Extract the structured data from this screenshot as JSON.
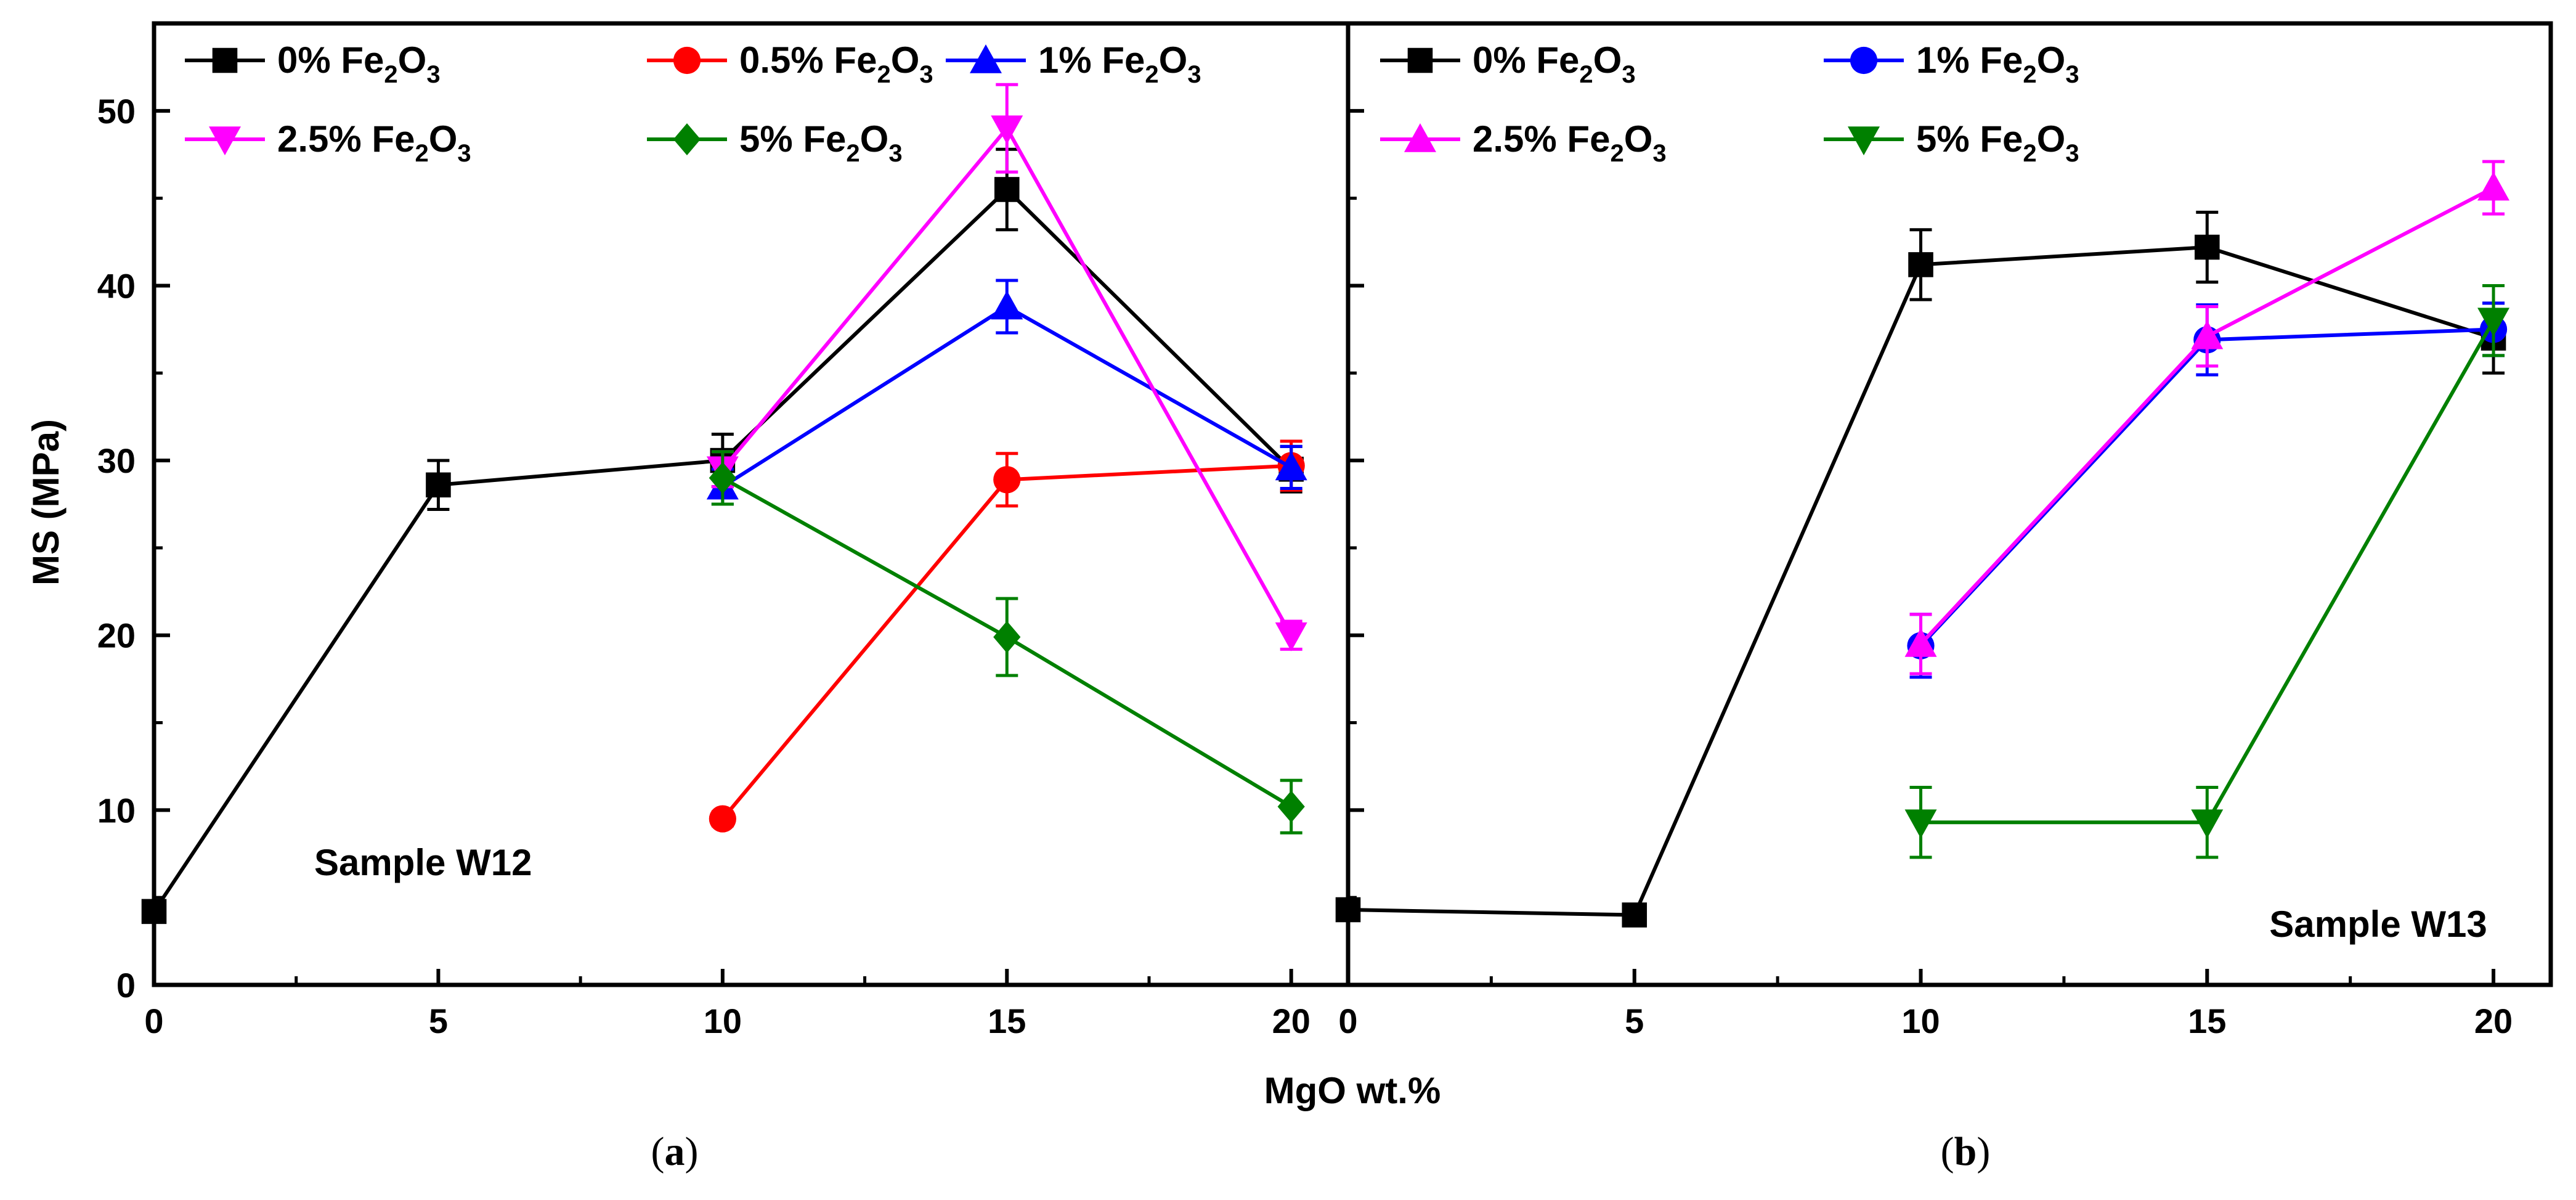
{
  "chart_data": [
    {
      "type": "line",
      "panel_label": "(a)",
      "panel_letter": "a",
      "annotation": "Sample W12",
      "xlabel": "MgO wt.%",
      "ylabel": "MS (MPa)",
      "xlim": [
        0,
        21
      ],
      "ylim": [
        0,
        55
      ],
      "xticks": [
        0,
        5,
        10,
        15,
        20
      ],
      "yticks": [
        0,
        10,
        20,
        30,
        40,
        50
      ],
      "legend_position": "top-left",
      "series": [
        {
          "name": "0% Fe2O3",
          "prefix": "0% Fe",
          "sub1": "2",
          "mid": "O",
          "sub2": "3",
          "color": "#000000",
          "marker": "square",
          "x": [
            0,
            5,
            10,
            15,
            20
          ],
          "y": [
            4.2,
            28.6,
            30.0,
            45.5,
            29.5
          ],
          "err": [
            0.5,
            1.4,
            1.5,
            2.3,
            1.3
          ]
        },
        {
          "name": "0.5% Fe2O3",
          "prefix": "0.5% Fe",
          "sub1": "2",
          "mid": "O",
          "sub2": "3",
          "color": "#ff0000",
          "marker": "circle",
          "x": [
            10,
            15,
            20
          ],
          "y": [
            9.5,
            28.9,
            29.7
          ],
          "err": [
            0.4,
            1.5,
            1.4
          ]
        },
        {
          "name": "1% Fe2O3",
          "prefix": "1% Fe",
          "sub1": "2",
          "mid": "O",
          "sub2": "3",
          "color": "#0000ff",
          "marker": "triangle-up",
          "x": [
            10,
            15,
            20
          ],
          "y": [
            28.5,
            38.8,
            29.6
          ],
          "err": [
            1.0,
            1.5,
            1.2
          ]
        },
        {
          "name": "2.5% Fe2O3",
          "prefix": "2.5% Fe",
          "sub1": "2",
          "mid": "O",
          "sub2": "3",
          "color": "#ff00ff",
          "marker": "triangle-down",
          "x": [
            10,
            15,
            20
          ],
          "y": [
            29.5,
            49.0,
            20.0
          ],
          "err": [
            1.0,
            2.5,
            0.8
          ]
        },
        {
          "name": "5% Fe2O3",
          "prefix": "5% Fe",
          "sub1": "2",
          "mid": "O",
          "sub2": "3",
          "color": "#008000",
          "marker": "diamond",
          "x": [
            10,
            15,
            20
          ],
          "y": [
            29.0,
            19.9,
            10.2
          ],
          "err": [
            1.5,
            2.2,
            1.5
          ]
        }
      ]
    },
    {
      "type": "line",
      "panel_label": "(b)",
      "panel_letter": "b",
      "annotation": "Sample W13",
      "xlabel": "MgO wt.%",
      "ylabel": "MS (MPa)",
      "xlim": [
        0,
        21
      ],
      "ylim": [
        0,
        55
      ],
      "xticks": [
        0,
        5,
        10,
        15,
        20
      ],
      "yticks": [
        0,
        10,
        20,
        30,
        40,
        50
      ],
      "legend_position": "top-left",
      "series": [
        {
          "name": "0% Fe2O3",
          "prefix": "0% Fe",
          "sub1": "2",
          "mid": "O",
          "sub2": "3",
          "color": "#000000",
          "marker": "square",
          "x": [
            0,
            5,
            10,
            15,
            20
          ],
          "y": [
            4.3,
            4.0,
            41.2,
            42.2,
            37.0
          ],
          "err": [
            0.5,
            0.3,
            2.0,
            2.0,
            2.0
          ]
        },
        {
          "name": "1% Fe2O3",
          "prefix": "1% Fe",
          "sub1": "2",
          "mid": "O",
          "sub2": "3",
          "color": "#0000ff",
          "marker": "circle",
          "x": [
            10,
            15,
            20
          ],
          "y": [
            19.4,
            36.9,
            37.5
          ],
          "err": [
            1.8,
            2.0,
            1.5
          ]
        },
        {
          "name": "2.5% Fe2O3",
          "prefix": "2.5% Fe",
          "sub1": "2",
          "mid": "O",
          "sub2": "3",
          "color": "#ff00ff",
          "marker": "triangle-up",
          "x": [
            10,
            15,
            20
          ],
          "y": [
            19.5,
            37.1,
            45.6
          ],
          "err": [
            1.7,
            1.7,
            1.5
          ]
        },
        {
          "name": "5% Fe2O3",
          "prefix": "5% Fe",
          "sub1": "2",
          "mid": "O",
          "sub2": "3",
          "color": "#008000",
          "marker": "triangle-down",
          "x": [
            10,
            15,
            20
          ],
          "y": [
            9.3,
            9.3,
            38.0
          ],
          "err": [
            2.0,
            2.0,
            2.0
          ]
        }
      ]
    }
  ]
}
